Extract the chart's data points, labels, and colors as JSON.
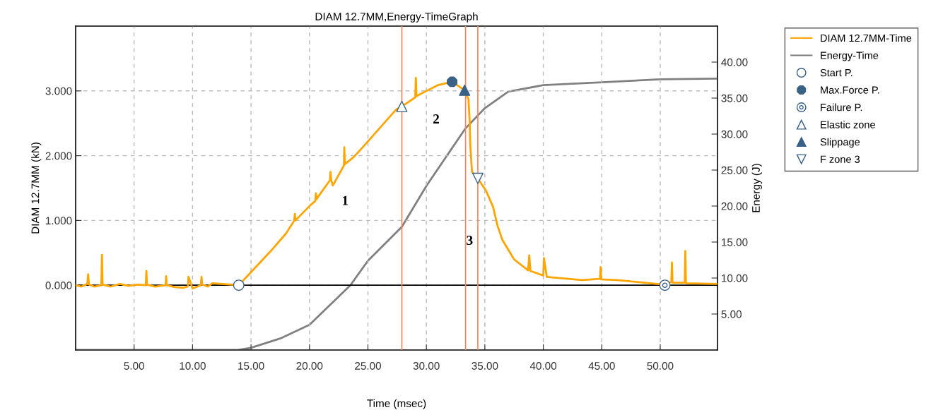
{
  "chart_data": {
    "type": "line",
    "title": "DIAM 12.7MM,Energy-TimeGraph",
    "xlabel": "Time (msec)",
    "ylabel": "DIAM 12.7MM (kN)",
    "y2label": "Energy (J)",
    "xlim": [
      0,
      54.9
    ],
    "ylim": [
      -1,
      4
    ],
    "y2lim": [
      0,
      45
    ],
    "xticks": [
      {
        "value": 5,
        "label": "5.00"
      },
      {
        "value": 10,
        "label": "10.00"
      },
      {
        "value": 15,
        "label": "15.00"
      },
      {
        "value": 20,
        "label": "20.00"
      },
      {
        "value": 25,
        "label": "25.00"
      },
      {
        "value": 30,
        "label": "30.00"
      },
      {
        "value": 35,
        "label": "35.00"
      },
      {
        "value": 40,
        "label": "40.00"
      },
      {
        "value": 45,
        "label": "45.00"
      },
      {
        "value": 50,
        "label": "50.00"
      }
    ],
    "yticks": [
      {
        "value": 0,
        "label": "0.000"
      },
      {
        "value": 1,
        "label": "1.000"
      },
      {
        "value": 2,
        "label": "2.000"
      },
      {
        "value": 3,
        "label": "3.000"
      }
    ],
    "y2ticks": [
      {
        "value": 5,
        "label": "5.00"
      },
      {
        "value": 10,
        "label": "10.00"
      },
      {
        "value": 15,
        "label": "15.00"
      },
      {
        "value": 20,
        "label": "20.00"
      },
      {
        "value": 25,
        "label": "25.00"
      },
      {
        "value": 30,
        "label": "30.00"
      },
      {
        "value": 35,
        "label": "35.00"
      },
      {
        "value": 40,
        "label": "40.00"
      }
    ],
    "grid": true,
    "legend": "right",
    "series": [
      {
        "name": "DIAM 12.7MM-Time",
        "color": "#ffa500",
        "x": [
          0,
          0.5,
          1.0,
          1.07,
          1.14,
          1.6,
          2.2,
          2.25,
          2.3,
          3.0,
          3.8,
          4.5,
          5.3,
          6.0,
          6.05,
          6.1,
          6.8,
          7.7,
          7.74,
          7.78,
          8.5,
          9.2,
          9.6,
          9.65,
          10.0,
          10.7,
          10.77,
          10.82,
          11.3,
          11.7,
          13.95,
          16.7,
          18.0,
          18.7,
          18.75,
          18.8,
          20.1,
          20.5,
          20.55,
          20.6,
          21.75,
          21.8,
          21.85,
          22.0,
          22.95,
          22.98,
          23.02,
          23.8,
          25.0,
          27.4,
          27.9,
          29.05,
          29.1,
          29.15,
          29.8,
          31.0,
          32.2,
          33.27,
          33.6,
          33.7,
          33.75,
          33.9,
          34.4,
          35.1,
          35.7,
          36.1,
          36.5,
          37.5,
          38.7,
          38.8,
          38.9,
          40.0,
          40.05,
          40.3,
          43.3,
          44.85,
          44.9,
          44.95,
          46.3,
          50.4,
          50.95,
          51.0,
          51.05,
          52.1,
          52.15,
          52.2,
          54.8
        ],
        "values": [
          0.0,
          -0.02,
          0.02,
          0.17,
          0.01,
          -0.02,
          0.0,
          0.47,
          0.01,
          -0.02,
          0.02,
          -0.01,
          0.01,
          0.0,
          0.22,
          0.01,
          -0.02,
          0.0,
          0.14,
          0.0,
          -0.03,
          -0.04,
          -0.02,
          0.13,
          -0.05,
          0.0,
          0.13,
          0.01,
          -0.02,
          0.03,
          0.0,
          0.53,
          0.8,
          1.0,
          1.1,
          1.0,
          1.24,
          1.3,
          1.42,
          1.33,
          1.62,
          1.75,
          1.63,
          1.54,
          1.85,
          2.13,
          1.87,
          1.98,
          2.22,
          2.71,
          2.76,
          2.9,
          3.2,
          2.92,
          2.98,
          3.09,
          3.14,
          3.01,
          2.87,
          2.54,
          2.18,
          1.75,
          1.65,
          1.46,
          1.21,
          0.91,
          0.7,
          0.4,
          0.23,
          0.46,
          0.22,
          0.15,
          0.42,
          0.13,
          0.08,
          0.1,
          0.28,
          0.09,
          0.08,
          0.01,
          0.05,
          0.35,
          0.04,
          0.04,
          0.53,
          0.03,
          0.02
        ]
      },
      {
        "name": "Energy-Time",
        "axis": "y2",
        "color": "#808080",
        "x": [
          0,
          13.8,
          15.0,
          17.5,
          20.0,
          23.5,
          25.0,
          27.9,
          30.0,
          33.35,
          35.0,
          37.0,
          40.0,
          45.0,
          50.0,
          54.9
        ],
        "values": [
          0,
          0,
          0.3,
          1.6,
          3.5,
          9.0,
          12.4,
          17.1,
          22.8,
          30.8,
          33.6,
          35.9,
          36.8,
          37.2,
          37.6,
          37.7
        ]
      },
      {
        "name": "Start P.",
        "type": "scatter",
        "marker": "circle-open",
        "color": "#3a6186",
        "x": [
          13.95
        ],
        "values": [
          0.0
        ]
      },
      {
        "name": "Max.Force P.",
        "type": "scatter",
        "marker": "circle",
        "color": "#3a6186",
        "x": [
          32.2
        ],
        "values": [
          3.14
        ]
      },
      {
        "name": "Failure P.",
        "type": "scatter",
        "marker": "circle-dot",
        "color": "#3a6186",
        "x": [
          50.4
        ],
        "values": [
          0.0
        ]
      },
      {
        "name": "Elastic zone",
        "type": "scatter",
        "marker": "triangle-open",
        "color": "#3a6186",
        "x": [
          27.9
        ],
        "values": [
          2.76
        ]
      },
      {
        "name": "Slippage",
        "type": "scatter",
        "marker": "triangle",
        "color": "#3a6186",
        "x": [
          33.27
        ],
        "values": [
          3.01
        ]
      },
      {
        "name": "F zone 3",
        "type": "scatter",
        "marker": "triangle-down-open",
        "color": "#3a6186",
        "x": [
          34.4
        ],
        "values": [
          1.65
        ]
      }
    ],
    "ref_lines": [
      {
        "axis": "y",
        "value": 0,
        "color": "#000000"
      },
      {
        "axis": "x",
        "value": 27.9,
        "color": "#f4845f"
      },
      {
        "axis": "x",
        "value": 33.35,
        "color": "#f4845f"
      },
      {
        "axis": "x",
        "value": 34.4,
        "color": "#f4845f"
      }
    ],
    "annotations": [
      "1",
      "2",
      "3"
    ]
  }
}
